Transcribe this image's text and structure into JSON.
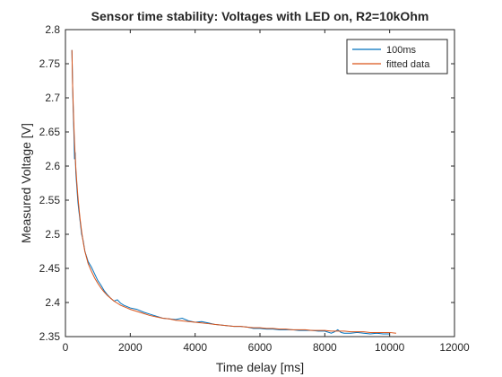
{
  "chart_data": {
    "type": "line",
    "title": "Sensor time stability: Voltages with LED on, R2=10kOhm",
    "xlabel": "Time delay [ms]",
    "ylabel": "Measured Voltage [V]",
    "xlim": [
      0,
      12000
    ],
    "ylim": [
      2.35,
      2.8
    ],
    "xticks": [
      0,
      2000,
      4000,
      6000,
      8000,
      10000,
      12000
    ],
    "xtick_labels": [
      "0",
      "2000",
      "4000",
      "6000",
      "8000",
      "10000",
      "12000"
    ],
    "yticks": [
      2.35,
      2.4,
      2.45,
      2.5,
      2.55,
      2.6,
      2.65,
      2.7,
      2.75,
      2.8
    ],
    "ytick_labels": [
      "2.35",
      "2.4",
      "2.45",
      "2.5",
      "2.55",
      "2.6",
      "2.65",
      "2.7",
      "2.75",
      "2.8"
    ],
    "grid": false,
    "legend_position": "top-right",
    "series": [
      {
        "name": "100ms",
        "color": "#0072BD",
        "x": [
          200,
          220,
          240,
          260,
          280,
          300,
          320,
          350,
          380,
          400,
          450,
          500,
          550,
          600,
          700,
          800,
          900,
          1000,
          1100,
          1200,
          1300,
          1400,
          1500,
          1600,
          1700,
          1800,
          1900,
          2000,
          2200,
          2400,
          2600,
          2800,
          3000,
          3200,
          3400,
          3600,
          3800,
          4000,
          4200,
          4400,
          4600,
          4800,
          5000,
          5200,
          5400,
          5600,
          5800,
          6000,
          6200,
          6400,
          6600,
          6800,
          7000,
          7200,
          7400,
          7600,
          7800,
          8000,
          8200,
          8300,
          8400,
          8500,
          8600,
          8800,
          9000,
          9200,
          9400,
          9600,
          9800,
          10000
        ],
        "y": [
          2.77,
          2.72,
          2.68,
          2.65,
          2.61,
          2.62,
          2.59,
          2.57,
          2.55,
          2.54,
          2.52,
          2.5,
          2.49,
          2.475,
          2.46,
          2.452,
          2.442,
          2.432,
          2.425,
          2.417,
          2.411,
          2.406,
          2.402,
          2.404,
          2.399,
          2.396,
          2.394,
          2.392,
          2.39,
          2.386,
          2.383,
          2.38,
          2.377,
          2.376,
          2.375,
          2.377,
          2.373,
          2.371,
          2.372,
          2.37,
          2.368,
          2.367,
          2.366,
          2.365,
          2.365,
          2.364,
          2.362,
          2.362,
          2.361,
          2.361,
          2.36,
          2.36,
          2.36,
          2.359,
          2.359,
          2.359,
          2.358,
          2.358,
          2.355,
          2.357,
          2.36,
          2.356,
          2.355,
          2.355,
          2.356,
          2.355,
          2.354,
          2.355,
          2.354,
          2.354
        ]
      },
      {
        "name": "fitted data",
        "color": "#D95319",
        "x": [
          200,
          220,
          240,
          260,
          280,
          300,
          320,
          350,
          380,
          400,
          450,
          500,
          550,
          600,
          700,
          800,
          900,
          1000,
          1100,
          1200,
          1300,
          1400,
          1500,
          1600,
          1700,
          1800,
          1900,
          2000,
          2200,
          2400,
          2600,
          2800,
          3000,
          3200,
          3400,
          3600,
          3800,
          4000,
          4200,
          4400,
          4600,
          4800,
          5000,
          5200,
          5400,
          5600,
          5800,
          6000,
          6200,
          6400,
          6600,
          6800,
          7000,
          7200,
          7400,
          7600,
          7800,
          8000,
          8200,
          8400,
          8600,
          8800,
          9000,
          9200,
          9400,
          9600,
          9800,
          10000,
          10200
        ],
        "y": [
          2.77,
          2.72,
          2.69,
          2.66,
          2.635,
          2.615,
          2.598,
          2.577,
          2.558,
          2.547,
          2.523,
          2.504,
          2.488,
          2.475,
          2.457,
          2.446,
          2.436,
          2.428,
          2.421,
          2.415,
          2.41,
          2.406,
          2.402,
          2.399,
          2.396,
          2.394,
          2.392,
          2.39,
          2.387,
          2.384,
          2.381,
          2.379,
          2.377,
          2.376,
          2.374,
          2.373,
          2.372,
          2.371,
          2.37,
          2.369,
          2.368,
          2.367,
          2.366,
          2.365,
          2.365,
          2.364,
          2.363,
          2.363,
          2.362,
          2.362,
          2.361,
          2.361,
          2.36,
          2.36,
          2.36,
          2.359,
          2.359,
          2.359,
          2.358,
          2.358,
          2.358,
          2.357,
          2.357,
          2.357,
          2.356,
          2.356,
          2.356,
          2.356,
          2.355
        ]
      }
    ]
  }
}
